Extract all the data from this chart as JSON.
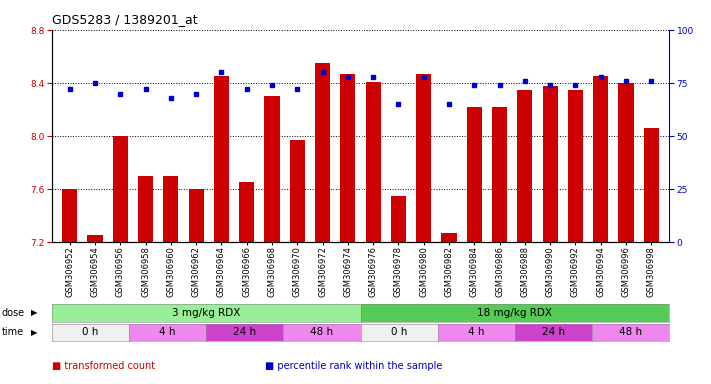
{
  "title": "GDS5283 / 1389201_at",
  "samples": [
    "GSM306952",
    "GSM306954",
    "GSM306956",
    "GSM306958",
    "GSM306960",
    "GSM306962",
    "GSM306964",
    "GSM306966",
    "GSM306968",
    "GSM306970",
    "GSM306972",
    "GSM306974",
    "GSM306976",
    "GSM306978",
    "GSM306980",
    "GSM306982",
    "GSM306984",
    "GSM306986",
    "GSM306988",
    "GSM306990",
    "GSM306992",
    "GSM306994",
    "GSM306996",
    "GSM306998"
  ],
  "bar_values": [
    7.6,
    7.25,
    8.0,
    7.7,
    7.7,
    7.6,
    8.45,
    7.65,
    8.3,
    7.97,
    8.55,
    8.47,
    8.41,
    7.55,
    8.47,
    7.27,
    8.22,
    8.22,
    8.35,
    8.38,
    8.35,
    8.45,
    8.4,
    8.06
  ],
  "dot_values": [
    72,
    75,
    70,
    72,
    68,
    70,
    80,
    72,
    74,
    72,
    80,
    78,
    78,
    65,
    78,
    65,
    74,
    74,
    76,
    74,
    74,
    78,
    76,
    76
  ],
  "ylim_left": [
    7.2,
    8.8
  ],
  "ylim_right": [
    0,
    100
  ],
  "yticks_left": [
    7.2,
    7.6,
    8.0,
    8.4,
    8.8
  ],
  "yticks_right": [
    0,
    25,
    50,
    75,
    100
  ],
  "bar_color": "#cc0000",
  "dot_color": "#0000cc",
  "dose_groups": [
    {
      "label": "3 mg/kg RDX",
      "start": 0,
      "end": 12,
      "color": "#99ee99"
    },
    {
      "label": "18 mg/kg RDX",
      "start": 12,
      "end": 24,
      "color": "#55cc55"
    }
  ],
  "time_groups": [
    {
      "label": "0 h",
      "start": 0,
      "end": 3,
      "color": "#f0f0f0"
    },
    {
      "label": "4 h",
      "start": 3,
      "end": 6,
      "color": "#ee88ee"
    },
    {
      "label": "24 h",
      "start": 6,
      "end": 9,
      "color": "#cc44cc"
    },
    {
      "label": "48 h",
      "start": 9,
      "end": 12,
      "color": "#ee88ee"
    },
    {
      "label": "0 h",
      "start": 12,
      "end": 15,
      "color": "#f0f0f0"
    },
    {
      "label": "4 h",
      "start": 15,
      "end": 18,
      "color": "#ee88ee"
    },
    {
      "label": "24 h",
      "start": 18,
      "end": 21,
      "color": "#cc44cc"
    },
    {
      "label": "48 h",
      "start": 21,
      "end": 24,
      "color": "#ee88ee"
    }
  ],
  "legend_items": [
    {
      "label": "transformed count",
      "color": "#cc0000"
    },
    {
      "label": "percentile rank within the sample",
      "color": "#0000cc"
    }
  ],
  "tick_fontsize": 6.5,
  "title_fontsize": 9,
  "label_fontsize": 7.5,
  "annot_fontsize": 7
}
